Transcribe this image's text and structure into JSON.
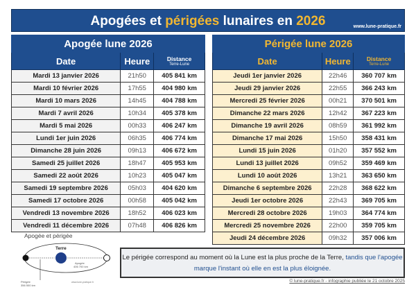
{
  "title": {
    "part1": "Apogées et ",
    "part2": "périgées",
    "part3": " lunaires en ",
    "year": "2026",
    "url": "www.lune-pratique.fr"
  },
  "apogee": {
    "title": "Apogée lune 2026",
    "col_date": "Date",
    "col_heure": "Heure",
    "col_dist": "Distance",
    "col_dist_sub": "Terre-Lune",
    "rows": [
      [
        "Mardi 13 janvier 2026",
        "21h50",
        "405 841 km"
      ],
      [
        "Mardi 10 février 2026",
        "17h55",
        "404 980 km"
      ],
      [
        "Mardi 10 mars 2026",
        "14h45",
        "404 788 km"
      ],
      [
        "Mardi 7 avril 2026",
        "10h34",
        "405 378 km"
      ],
      [
        "Mardi 5 mai 2026",
        "00h33",
        "406 247 km"
      ],
      [
        "Lundi 1er juin 2026",
        "06h35",
        "406 774 km"
      ],
      [
        "Dimanche 28 juin 2026",
        "09h13",
        "406 672 km"
      ],
      [
        "Samedi 25 juillet 2026",
        "18h47",
        "405 953 km"
      ],
      [
        "Samedi 22 août 2026",
        "10h23",
        "405 047 km"
      ],
      [
        "Samedi 19 septembre 2026",
        "05h03",
        "404 620 km"
      ],
      [
        "Samedi 17 octobre 2026",
        "00h58",
        "405 042 km"
      ],
      [
        "Vendredi 13 novembre 2026",
        "18h52",
        "406 023 km"
      ],
      [
        "Vendredi 11 décembre 2026",
        "07h48",
        "406 826 km"
      ]
    ]
  },
  "perigee": {
    "title": "Périgée lune 2026",
    "col_date": "Date",
    "col_heure": "Heure",
    "col_dist": "Distance",
    "col_dist_sub": "Terre-Lune",
    "rows": [
      [
        "Jeudi 1er janvier 2026",
        "22h46",
        "360 707 km"
      ],
      [
        "Jeudi 29 janvier 2026",
        "22h55",
        "366 243 km"
      ],
      [
        "Mercredi 25 février 2026",
        "00h21",
        "370 501 km"
      ],
      [
        "Dimanche 22 mars 2026",
        "12h42",
        "367 223 km"
      ],
      [
        "Dimanche 19 avril 2026",
        "08h59",
        "361 992 km"
      ],
      [
        "Dimanche 17 mai 2026",
        "15h50",
        "358 431 km"
      ],
      [
        "Lundi 15 juin 2026",
        "01h20",
        "357 552 km"
      ],
      [
        "Lundi 13 juillet 2026",
        "09h52",
        "359 469 km"
      ],
      [
        "Lundi 10 août 2026",
        "13h21",
        "363 650 km"
      ],
      [
        "Dimanche 6 septembre 2026",
        "22h28",
        "368 622 km"
      ],
      [
        "Jeudi 1er octobre 2026",
        "22h43",
        "369 705 km"
      ],
      [
        "Mercredi 28 octobre 2026",
        "19h03",
        "364 774 km"
      ],
      [
        "Mercredi 25 novembre 2026",
        "22h00",
        "359 705 km"
      ],
      [
        "Jeudi 24 décembre 2026",
        "09h32",
        "357 006 km"
      ]
    ]
  },
  "diagram": {
    "title": "Apogée et périgée",
    "earth": "Terre",
    "apogee_label": "Apogée",
    "apogee_dist": "406 700 km",
    "perigee_label": "Périgée",
    "perigee_dist": "356 500 km",
    "url": "www.lune-pratique.fr"
  },
  "note": {
    "text1": "Le périgée correspond au moment où la Lune est la plus proche de la Terre, ",
    "text2": "tandis que l'apogée marque l'instant où elle en est la plus éloignée."
  },
  "credit": "© lune-pratique.fr - infographie publiée le 21 octobre 2025",
  "colors": {
    "navy": "#1f4e8f",
    "gold": "#f2b731",
    "perigee_row": "#fdf0cf",
    "apogee_row": "#f2f2f2"
  }
}
